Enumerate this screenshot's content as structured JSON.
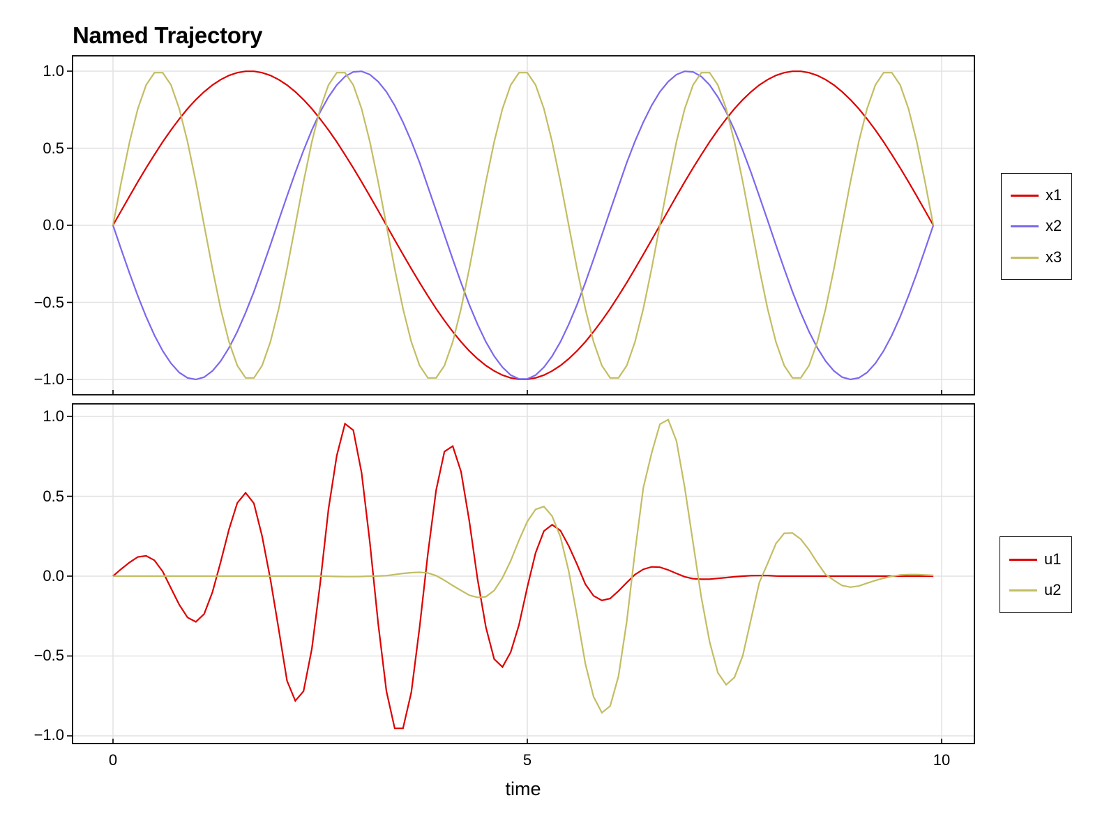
{
  "title": "Named Trajectory",
  "colors": {
    "x1": "#dd0000",
    "x2": "#7b68ee",
    "x3": "#c3bd63",
    "u1": "#dd0000",
    "u2": "#c3bd63",
    "grid": "#e2e2e2",
    "frame": "#000000"
  },
  "axes": {
    "top": {
      "yticks": [
        "1.0",
        "0.5",
        "0.0",
        "−0.5",
        "−1.0"
      ],
      "ytick_values": [
        1.0,
        0.5,
        0.0,
        -0.5,
        -1.0
      ],
      "xtick_values": [
        0,
        5,
        10
      ]
    },
    "bottom": {
      "yticks": [
        "1.0",
        "0.5",
        "0.0",
        "−0.5",
        "−1.0"
      ],
      "ytick_values": [
        1.0,
        0.5,
        0.0,
        -0.5,
        -1.0
      ],
      "xticks": [
        "0",
        "5",
        "10"
      ],
      "xtick_values": [
        0,
        5,
        10
      ],
      "xlabel": "time"
    }
  },
  "legends": {
    "top": [
      {
        "label": "x1",
        "series": "x1"
      },
      {
        "label": "x2",
        "series": "x2"
      },
      {
        "label": "x3",
        "series": "x3"
      }
    ],
    "bottom": [
      {
        "label": "u1",
        "series": "u1"
      },
      {
        "label": "u2",
        "series": "u2"
      }
    ]
  },
  "chart_data": [
    {
      "type": "line",
      "title": "Named Trajectory",
      "panel": "top",
      "xlabel": "",
      "ylabel": "",
      "xlim": [
        -0.5,
        10.4
      ],
      "ylim": [
        -1.1,
        1.1
      ],
      "grid": true,
      "legend_position": "right",
      "x_start": 0,
      "x_step": 0.1,
      "x_count": 100,
      "series": [
        {
          "name": "x1",
          "values": [
            0,
            0.095,
            0.189,
            0.282,
            0.372,
            0.458,
            0.541,
            0.618,
            0.69,
            0.756,
            0.815,
            0.866,
            0.91,
            0.945,
            0.972,
            0.99,
            0.999,
            0.999,
            0.99,
            0.972,
            0.945,
            0.91,
            0.866,
            0.815,
            0.756,
            0.69,
            0.618,
            0.541,
            0.458,
            0.372,
            0.282,
            0.189,
            0.095,
            0,
            -0.095,
            -0.189,
            -0.282,
            -0.372,
            -0.458,
            -0.541,
            -0.618,
            -0.69,
            -0.756,
            -0.815,
            -0.866,
            -0.91,
            -0.945,
            -0.972,
            -0.99,
            -0.999,
            -0.999,
            -0.99,
            -0.972,
            -0.945,
            -0.91,
            -0.866,
            -0.815,
            -0.756,
            -0.69,
            -0.618,
            -0.541,
            -0.458,
            -0.372,
            -0.282,
            -0.189,
            -0.095,
            0,
            0.095,
            0.189,
            0.282,
            0.372,
            0.458,
            0.541,
            0.618,
            0.69,
            0.756,
            0.815,
            0.866,
            0.91,
            0.945,
            0.972,
            0.99,
            0.999,
            0.999,
            0.99,
            0.972,
            0.945,
            0.91,
            0.866,
            0.815,
            0.756,
            0.69,
            0.618,
            0.541,
            0.458,
            0.372,
            0.282,
            0.189,
            0.095,
            0
          ]
        },
        {
          "name": "x2",
          "values": [
            0,
            -0.158,
            -0.312,
            -0.458,
            -0.593,
            -0.713,
            -0.815,
            -0.896,
            -0.955,
            -0.99,
            -1.0,
            -0.985,
            -0.945,
            -0.881,
            -0.795,
            -0.69,
            -0.567,
            -0.431,
            -0.282,
            -0.127,
            0.032,
            0.189,
            0.342,
            0.486,
            0.618,
            0.735,
            0.832,
            0.91,
            0.965,
            0.995,
            0.999,
            0.978,
            0.932,
            0.866,
            0.777,
            0.669,
            0.545,
            0.407,
            0.251,
            0.095,
            -0.063,
            -0.22,
            -0.372,
            -0.515,
            -0.643,
            -0.756,
            -0.849,
            -0.921,
            -0.972,
            -0.997,
            -0.997,
            -0.972,
            -0.921,
            -0.849,
            -0.756,
            -0.643,
            -0.515,
            -0.372,
            -0.22,
            -0.063,
            0.095,
            0.251,
            0.407,
            0.545,
            0.669,
            0.777,
            0.866,
            0.932,
            0.978,
            0.999,
            0.995,
            0.965,
            0.91,
            0.832,
            0.735,
            0.618,
            0.486,
            0.342,
            0.189,
            0.032,
            -0.127,
            -0.282,
            -0.431,
            -0.567,
            -0.69,
            -0.795,
            -0.881,
            -0.945,
            -0.985,
            -1.0,
            -0.99,
            -0.955,
            -0.896,
            -0.815,
            -0.713,
            -0.593,
            -0.458,
            -0.312,
            -0.158,
            0
          ]
        },
        {
          "name": "x3",
          "values": [
            0,
            0.282,
            0.541,
            0.756,
            0.91,
            0.99,
            0.99,
            0.91,
            0.756,
            0.541,
            0.282,
            0,
            -0.282,
            -0.541,
            -0.756,
            -0.91,
            -0.99,
            -0.99,
            -0.91,
            -0.756,
            -0.541,
            -0.282,
            0,
            0.282,
            0.541,
            0.756,
            0.91,
            0.99,
            0.99,
            0.91,
            0.756,
            0.541,
            0.282,
            0,
            -0.282,
            -0.541,
            -0.756,
            -0.91,
            -0.99,
            -0.99,
            -0.91,
            -0.756,
            -0.541,
            -0.282,
            0,
            0.282,
            0.541,
            0.756,
            0.91,
            0.99,
            0.99,
            0.91,
            0.756,
            0.541,
            0.282,
            0,
            -0.282,
            -0.541,
            -0.756,
            -0.91,
            -0.99,
            -0.99,
            -0.91,
            -0.756,
            -0.541,
            -0.282,
            0,
            0.282,
            0.541,
            0.756,
            0.91,
            0.99,
            0.99,
            0.91,
            0.756,
            0.541,
            0.282,
            0,
            -0.282,
            -0.541,
            -0.756,
            -0.91,
            -0.99,
            -0.99,
            -0.91,
            -0.756,
            -0.541,
            -0.282,
            0,
            0.282,
            0.541,
            0.756,
            0.91,
            0.99,
            0.99,
            0.91,
            0.756,
            0.541,
            0.282,
            0
          ]
        }
      ]
    },
    {
      "type": "line",
      "panel": "bottom",
      "xlabel": "time",
      "ylabel": "",
      "xlim": [
        -0.5,
        10.4
      ],
      "ylim": [
        -1.05,
        1.07
      ],
      "grid": true,
      "legend_position": "right",
      "x_start": 0,
      "x_step": 0.1,
      "x_count": 100,
      "series": [
        {
          "name": "u1",
          "values": [
            0,
            0.045,
            0.086,
            0.12,
            0.127,
            0.099,
            0.029,
            -0.076,
            -0.179,
            -0.259,
            -0.286,
            -0.237,
            -0.1,
            0.089,
            0.292,
            0.458,
            0.522,
            0.456,
            0.25,
            -0.02,
            -0.333,
            -0.655,
            -0.781,
            -0.72,
            -0.455,
            -0.047,
            0.418,
            0.754,
            0.954,
            0.914,
            0.647,
            0.21,
            -0.297,
            -0.72,
            -0.953,
            -0.953,
            -0.727,
            -0.319,
            0.139,
            0.539,
            0.78,
            0.814,
            0.654,
            0.346,
            -0.02,
            -0.319,
            -0.519,
            -0.569,
            -0.476,
            -0.305,
            -0.069,
            0.146,
            0.282,
            0.322,
            0.285,
            0.189,
            0.074,
            -0.05,
            -0.123,
            -0.152,
            -0.14,
            -0.093,
            -0.04,
            0.01,
            0.043,
            0.058,
            0.056,
            0.039,
            0.017,
            -0.004,
            -0.016,
            -0.019,
            -0.019,
            -0.014,
            -0.009,
            -0.004,
            0,
            0.003,
            0.004,
            0.004,
            0.001,
            0,
            0,
            0,
            0,
            0,
            0,
            0,
            0,
            0,
            0,
            0,
            0,
            0,
            0,
            0,
            0,
            0,
            0,
            0
          ]
        },
        {
          "name": "u2",
          "values": [
            0,
            0,
            0,
            0,
            0,
            0,
            0,
            0,
            0,
            0,
            0,
            0,
            0,
            0,
            0,
            0,
            0,
            0,
            0,
            0,
            0,
            0,
            0,
            0,
            0,
            0,
            -0.001,
            -0.002,
            -0.003,
            -0.003,
            -0.002,
            0,
            0.001,
            0.003,
            0.01,
            0.017,
            0.022,
            0.024,
            0.02,
            0.003,
            -0.026,
            -0.059,
            -0.09,
            -0.119,
            -0.133,
            -0.129,
            -0.09,
            -0.011,
            0.096,
            0.225,
            0.342,
            0.418,
            0.436,
            0.375,
            0.246,
            0.031,
            -0.248,
            -0.548,
            -0.755,
            -0.855,
            -0.813,
            -0.627,
            -0.283,
            0.153,
            0.553,
            0.77,
            0.951,
            0.98,
            0.847,
            0.554,
            0.21,
            -0.133,
            -0.412,
            -0.605,
            -0.68,
            -0.634,
            -0.498,
            -0.269,
            -0.04,
            0.079,
            0.203,
            0.268,
            0.27,
            0.232,
            0.165,
            0.084,
            0.01,
            -0.026,
            -0.059,
            -0.069,
            -0.062,
            -0.044,
            -0.027,
            -0.013,
            -0.001,
            0.007,
            0.01,
            0.01,
            0.007,
            0.005
          ]
        }
      ]
    }
  ]
}
